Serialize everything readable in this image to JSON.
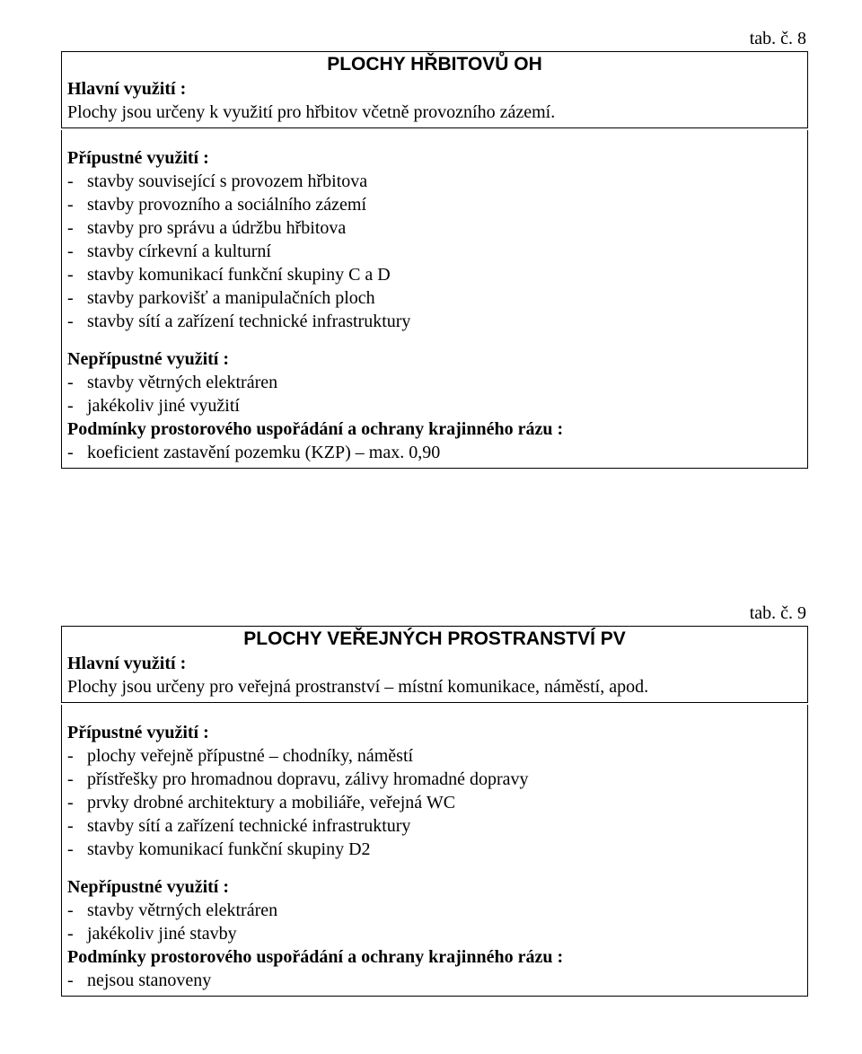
{
  "tab8_label": "tab. č. 8",
  "tab9_label": "tab. č. 9",
  "block1": {
    "title": "PLOCHY HŘBITOVŮ   OH",
    "h_main": "Hlavní využití :",
    "main_text": "Plochy jsou  určeny k využití pro hřbitov včetně provozního zázemí.",
    "h_allow": "Přípustné využití :",
    "allow": [
      "stavby související s provozem hřbitova",
      "stavby provozního a sociálního zázemí",
      "stavby pro správu a údržbu hřbitova",
      "stavby církevní a kulturní",
      "stavby komunikací funkční skupiny C a D",
      "stavby parkovišť a manipulačních ploch",
      "stavby sítí a zařízení technické infrastruktury"
    ],
    "h_disallow": "Nepřípustné využití :",
    "disallow": [
      "stavby větrných elektráren",
      "jakékoliv jiné využití"
    ],
    "h_cond": "Podmínky prostorového uspořádání a ochrany krajinného rázu :",
    "cond": [
      "koeficient zastavění pozemku (KZP) – max. 0,90"
    ]
  },
  "block2": {
    "title": "PLOCHY VEŘEJNÝCH PROSTRANSTVÍ   PV",
    "h_main": "Hlavní využití :",
    "main_text": "Plochy jsou určeny pro veřejná prostranství – místní komunikace, náměstí, apod.",
    "h_allow": "Přípustné využití :",
    "allow": [
      "plochy veřejně přípustné – chodníky, náměstí",
      "přístřešky pro hromadnou dopravu, zálivy hromadné dopravy",
      "prvky drobné architektury a mobiliáře, veřejná WC",
      "stavby sítí a zařízení technické infrastruktury",
      "stavby komunikací funkční skupiny D2"
    ],
    "h_disallow": "Nepřípustné využití :",
    "disallow": [
      "stavby větrných elektráren",
      "jakékoliv jiné stavby"
    ],
    "h_cond": "Podmínky prostorového uspořádání a ochrany krajinného rázu :",
    "cond": [
      "nejsou stanoveny"
    ]
  }
}
